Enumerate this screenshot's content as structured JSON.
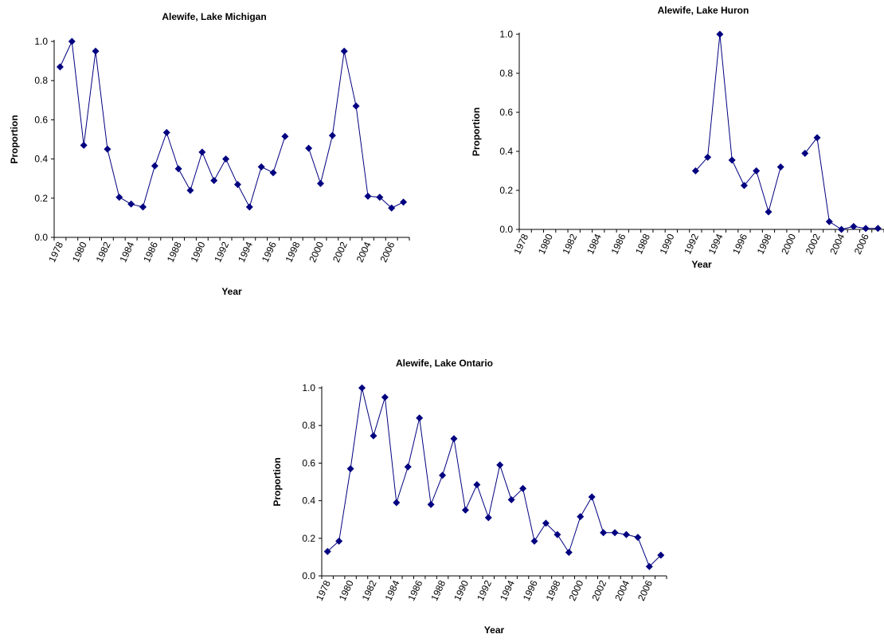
{
  "chart_data": [
    {
      "type": "line",
      "title": "Alewife, Lake Michigan",
      "xlabel": "Year",
      "ylabel": "Proportion",
      "ylim": [
        0,
        1.0
      ],
      "yticks": [
        "0.0",
        "0.2",
        "0.4",
        "0.6",
        "0.8",
        "1.0"
      ],
      "xticks": [
        "1978",
        "1980",
        "1982",
        "1984",
        "1986",
        "1988",
        "1990",
        "1992",
        "1994",
        "1996",
        "1998",
        "2000",
        "2002",
        "2004",
        "2006"
      ],
      "grid": false,
      "marker": "diamond",
      "color": "#000080",
      "x": [
        1978,
        1979,
        1980,
        1981,
        1982,
        1983,
        1984,
        1985,
        1986,
        1987,
        1988,
        1989,
        1990,
        1991,
        1992,
        1993,
        1994,
        1995,
        1996,
        1997,
        1998,
        1999,
        2000,
        2001,
        2002,
        2003,
        2004,
        2005,
        2006,
        2007
      ],
      "y": [
        0.87,
        1.0,
        0.47,
        0.95,
        0.45,
        0.205,
        0.17,
        0.155,
        0.365,
        0.535,
        0.35,
        0.24,
        0.435,
        0.29,
        0.4,
        0.27,
        0.155,
        0.36,
        0.33,
        0.515,
        null,
        0.455,
        0.275,
        0.52,
        0.95,
        0.67,
        0.21,
        0.205,
        0.15,
        0.18
      ]
    },
    {
      "type": "line",
      "title": "Alewife, Lake Huron",
      "xlabel": "Year",
      "ylabel": "Proportion",
      "ylim": [
        0,
        1.0
      ],
      "yticks": [
        "0.0",
        "0.2",
        "0.4",
        "0.6",
        "0.8",
        "1.0"
      ],
      "xticks": [
        "1978",
        "1980",
        "1982",
        "1984",
        "1986",
        "1988",
        "1990",
        "1992",
        "1994",
        "1996",
        "1998",
        "2000",
        "2002",
        "2004",
        "2006"
      ],
      "grid": false,
      "marker": "diamond",
      "color": "#000080",
      "x": [
        1978,
        1979,
        1980,
        1981,
        1982,
        1983,
        1984,
        1985,
        1986,
        1987,
        1988,
        1989,
        1990,
        1991,
        1992,
        1993,
        1994,
        1995,
        1996,
        1997,
        1998,
        1999,
        2000,
        2001,
        2002,
        2003,
        2004,
        2005,
        2006,
        2007
      ],
      "y": [
        null,
        null,
        null,
        null,
        null,
        null,
        null,
        null,
        null,
        null,
        null,
        null,
        null,
        null,
        0.3,
        0.37,
        1.0,
        0.355,
        0.225,
        0.3,
        0.09,
        0.32,
        null,
        0.39,
        0.47,
        0.04,
        0.0,
        0.015,
        0.005,
        0.005
      ]
    },
    {
      "type": "line",
      "title": "Alewife, Lake Ontario",
      "xlabel": "Year",
      "ylabel": "Proportion",
      "ylim": [
        0,
        1.0
      ],
      "yticks": [
        "0.0",
        "0.2",
        "0.4",
        "0.6",
        "0.8",
        "1.0"
      ],
      "xticks": [
        "1978",
        "1980",
        "1982",
        "1984",
        "1986",
        "1988",
        "1990",
        "1992",
        "1994",
        "1996",
        "1998",
        "2000",
        "2002",
        "2004",
        "2006"
      ],
      "grid": false,
      "marker": "diamond",
      "color": "#000080",
      "x": [
        1978,
        1979,
        1980,
        1981,
        1982,
        1983,
        1984,
        1985,
        1986,
        1987,
        1988,
        1989,
        1990,
        1991,
        1992,
        1993,
        1994,
        1995,
        1996,
        1997,
        1998,
        1999,
        2000,
        2001,
        2002,
        2003,
        2004,
        2005,
        2006,
        2007
      ],
      "y": [
        0.13,
        0.185,
        0.57,
        1.0,
        0.745,
        0.95,
        0.39,
        0.58,
        0.84,
        0.38,
        0.535,
        0.73,
        0.35,
        0.485,
        0.31,
        0.59,
        0.405,
        0.465,
        0.185,
        0.28,
        0.22,
        0.125,
        0.315,
        0.42,
        0.23,
        0.23,
        0.22,
        0.205,
        0.05,
        0.11
      ]
    }
  ]
}
